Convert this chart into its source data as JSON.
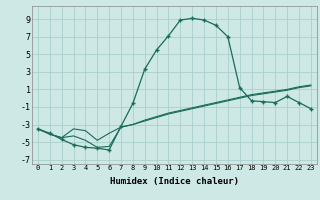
{
  "xlabel": "Humidex (Indice chaleur)",
  "background_color": "#cde8e5",
  "grid_color": "#aacfcc",
  "line_color": "#1a6b5a",
  "xlim": [
    -0.5,
    23.5
  ],
  "ylim": [
    -7.5,
    10.5
  ],
  "xticks": [
    0,
    1,
    2,
    3,
    4,
    5,
    6,
    7,
    8,
    9,
    10,
    11,
    12,
    13,
    14,
    15,
    16,
    17,
    18,
    19,
    20,
    21,
    22,
    23
  ],
  "yticks": [
    -7,
    -5,
    -3,
    -1,
    1,
    3,
    5,
    7,
    9
  ],
  "series1_x": [
    0,
    1,
    2,
    3,
    4,
    5,
    6,
    7,
    8,
    9,
    10,
    11,
    12,
    13,
    14,
    15,
    16,
    17,
    18,
    19,
    20,
    21,
    22,
    23
  ],
  "series1_y": [
    -3.5,
    -4,
    -4.7,
    -5.3,
    -5.6,
    -5.7,
    -5.9,
    -3.2,
    -0.6,
    3.3,
    5.5,
    7.1,
    8.9,
    9.1,
    8.9,
    8.3,
    7.0,
    1.2,
    -0.3,
    -0.4,
    -0.5,
    0.2,
    -0.5,
    -1.2
  ],
  "series2_x": [
    0,
    1,
    2,
    3,
    4,
    5,
    6,
    7,
    8,
    9,
    10,
    11,
    12,
    13,
    14,
    15,
    16,
    17,
    18,
    19,
    20,
    21,
    22,
    23
  ],
  "series2_y": [
    -3.5,
    -4.1,
    -4.5,
    -3.5,
    -3.7,
    -4.8,
    -4.0,
    -3.3,
    -3.0,
    -2.6,
    -2.2,
    -1.8,
    -1.5,
    -1.2,
    -0.9,
    -0.6,
    -0.3,
    0.0,
    0.3,
    0.5,
    0.7,
    0.9,
    1.2,
    1.4
  ],
  "series3_x": [
    0,
    1,
    2,
    3,
    4,
    5,
    6,
    7,
    8,
    9,
    10,
    11,
    12,
    13,
    14,
    15,
    16,
    17,
    18,
    19,
    20,
    21,
    22,
    23
  ],
  "series3_y": [
    -3.5,
    -4.1,
    -4.5,
    -4.3,
    -4.8,
    -5.6,
    -5.5,
    -3.3,
    -3.0,
    -2.5,
    -2.1,
    -1.7,
    -1.4,
    -1.1,
    -0.8,
    -0.5,
    -0.2,
    0.1,
    0.4,
    0.6,
    0.8,
    1.0,
    1.3,
    1.5
  ]
}
